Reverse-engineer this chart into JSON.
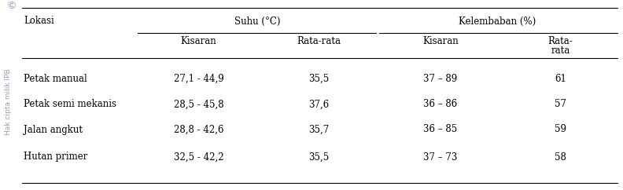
{
  "col_headers_row1": [
    "Lokasi",
    "Suhu (°C)",
    "Kelembaban (%)"
  ],
  "col_headers_row2": [
    "Kisaran",
    "Rata-rata",
    "Kisaran",
    "Rata-\nrata"
  ],
  "rows": [
    [
      "Petak manual",
      "27,1 - 44,9",
      "35,5",
      "37 – 89",
      "61"
    ],
    [
      "Petak semi mekanis",
      "28,5 - 45,8",
      "37,6",
      "36 – 86",
      "57"
    ],
    [
      "Jalan angkut",
      "28,8 - 42,6",
      "35,7",
      "36 – 85",
      "59"
    ],
    [
      "Hutan primer",
      "32,5 - 42,2",
      "35,5",
      "37 – 73",
      "58"
    ]
  ],
  "background_color": "#ffffff",
  "text_color": "#000000",
  "font_size": 8.5,
  "watermark_color": "#9999cc",
  "watermark_text": "Hak cipta milik IPB"
}
